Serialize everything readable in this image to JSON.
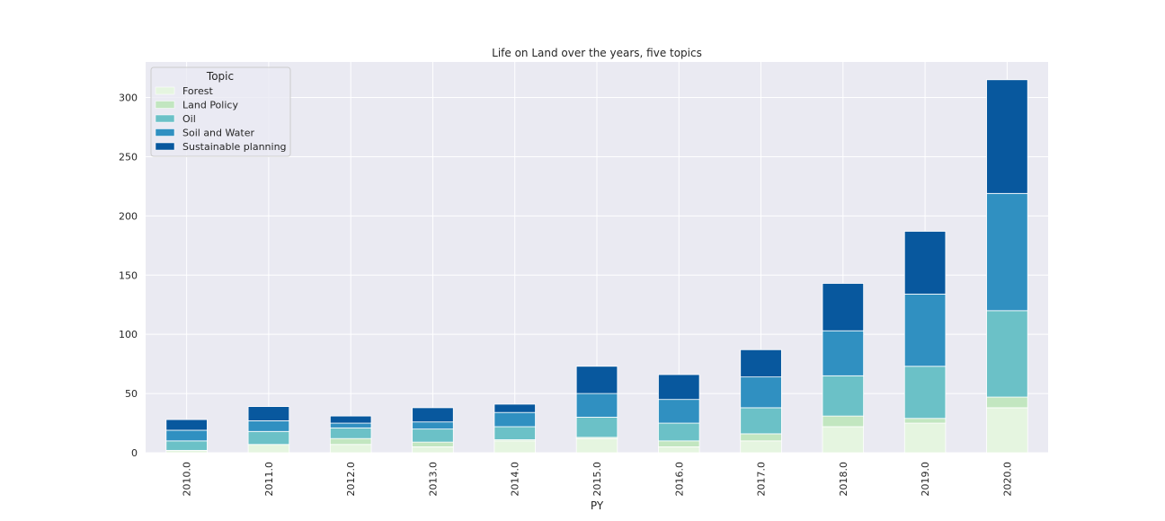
{
  "chart_data": {
    "type": "bar",
    "stacked": true,
    "title": "Life on Land over the years, five topics",
    "xlabel": "PY",
    "ylabel": "",
    "categories": [
      "2010.0",
      "2011.0",
      "2012.0",
      "2013.0",
      "2014.0",
      "2015.0",
      "2016.0",
      "2017.0",
      "2018.0",
      "2019.0",
      "2020.0"
    ],
    "ylim": [
      0,
      330
    ],
    "yticks": [
      "0",
      "50",
      "100",
      "150",
      "200",
      "250",
      "300"
    ],
    "grid": true,
    "legend": {
      "title": "Topic",
      "placement": "top-left"
    },
    "series": [
      {
        "name": "Forest",
        "color": "#e5f5e0",
        "values": [
          2,
          7,
          7,
          5,
          10,
          12,
          5,
          10,
          22,
          25,
          38
        ]
      },
      {
        "name": "Land Policy",
        "color": "#c2e6c0",
        "values": [
          0,
          0,
          5,
          4,
          1,
          1,
          5,
          6,
          9,
          4,
          9
        ]
      },
      {
        "name": "Oil",
        "color": "#6bc1c7",
        "values": [
          8,
          11,
          9,
          11,
          11,
          17,
          15,
          22,
          34,
          44,
          73
        ]
      },
      {
        "name": "Soil and Water",
        "color": "#3090c1",
        "values": [
          9,
          9,
          4,
          6,
          12,
          20,
          20,
          26,
          38,
          61,
          99
        ]
      },
      {
        "name": "Sustainable planning",
        "color": "#08589e",
        "values": [
          9,
          12,
          6,
          12,
          7,
          23,
          21,
          23,
          40,
          53,
          96
        ]
      }
    ]
  }
}
